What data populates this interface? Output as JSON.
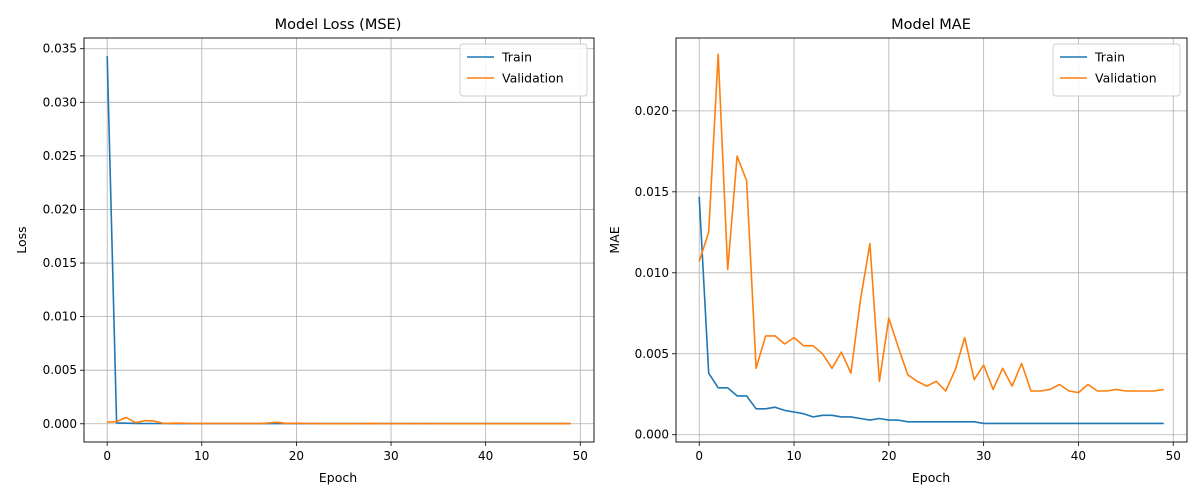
{
  "chart_data": [
    {
      "type": "line",
      "title": "Model Loss (MSE)",
      "xlabel": "Epoch",
      "ylabel": "Loss",
      "xlim": [
        -2.45,
        51.45
      ],
      "ylim": [
        -0.0017,
        0.036
      ],
      "xticks": [
        0,
        10,
        20,
        30,
        40,
        50
      ],
      "yticks": [
        0.0,
        0.005,
        0.01,
        0.015,
        0.02,
        0.025,
        0.03,
        0.035
      ],
      "ytick_labels": [
        "0.000",
        "0.005",
        "0.010",
        "0.015",
        "0.020",
        "0.025",
        "0.030",
        "0.035"
      ],
      "grid": true,
      "legend": "top-right",
      "x": [
        0,
        1,
        2,
        3,
        4,
        5,
        6,
        7,
        8,
        9,
        10,
        11,
        12,
        13,
        14,
        15,
        16,
        17,
        18,
        19,
        20,
        21,
        22,
        23,
        24,
        25,
        26,
        27,
        28,
        29,
        30,
        31,
        32,
        33,
        34,
        35,
        36,
        37,
        38,
        39,
        40,
        41,
        42,
        43,
        44,
        45,
        46,
        47,
        48,
        49
      ],
      "series": [
        {
          "name": "Train",
          "color": "#1f77b4",
          "values": [
            0.0343,
            8e-05,
            5e-05,
            4e-05,
            3e-05,
            3e-05,
            3e-05,
            2e-05,
            2e-05,
            2e-05,
            2e-05,
            2e-05,
            2e-05,
            2e-05,
            2e-05,
            2e-05,
            2e-05,
            2e-05,
            2e-05,
            2e-05,
            2e-05,
            2e-05,
            2e-05,
            2e-05,
            2e-05,
            2e-05,
            2e-05,
            2e-05,
            2e-05,
            2e-05,
            2e-05,
            2e-05,
            2e-05,
            2e-05,
            2e-05,
            2e-05,
            2e-05,
            2e-05,
            2e-05,
            2e-05,
            2e-05,
            2e-05,
            2e-05,
            2e-05,
            2e-05,
            2e-05,
            2e-05,
            2e-05,
            2e-05,
            2e-05
          ]
        },
        {
          "name": "Validation",
          "color": "#ff7f0e",
          "values": [
            0.00015,
            0.0002,
            0.0006,
            0.0001,
            0.0003,
            0.00025,
            3e-05,
            5e-05,
            5e-05,
            3e-05,
            4e-05,
            3e-05,
            3e-05,
            3e-05,
            2e-05,
            3e-05,
            2e-05,
            7e-05,
            0.00014,
            2e-05,
            5e-05,
            3e-05,
            2e-05,
            1e-05,
            1e-05,
            1e-05,
            1e-05,
            2e-05,
            4e-05,
            1e-05,
            2e-05,
            1e-05,
            2e-05,
            1e-05,
            2e-05,
            1e-05,
            1e-05,
            1e-05,
            1e-05,
            1e-05,
            1e-05,
            1e-05,
            1e-05,
            1e-05,
            1e-05,
            1e-05,
            1e-05,
            1e-05,
            1e-05,
            1e-05
          ]
        }
      ]
    },
    {
      "type": "line",
      "title": "Model MAE",
      "xlabel": "Epoch",
      "ylabel": "MAE",
      "xlim": [
        -2.45,
        51.45
      ],
      "ylim": [
        -0.00045,
        0.0245
      ],
      "xticks": [
        0,
        10,
        20,
        30,
        40,
        50
      ],
      "yticks": [
        0.0,
        0.005,
        0.01,
        0.015,
        0.02
      ],
      "ytick_labels": [
        "0.000",
        "0.005",
        "0.010",
        "0.015",
        "0.020"
      ],
      "grid": true,
      "legend": "top-right",
      "x": [
        0,
        1,
        2,
        3,
        4,
        5,
        6,
        7,
        8,
        9,
        10,
        11,
        12,
        13,
        14,
        15,
        16,
        17,
        18,
        19,
        20,
        21,
        22,
        23,
        24,
        25,
        26,
        27,
        28,
        29,
        30,
        31,
        32,
        33,
        34,
        35,
        36,
        37,
        38,
        39,
        40,
        41,
        42,
        43,
        44,
        45,
        46,
        47,
        48,
        49
      ],
      "series": [
        {
          "name": "Train",
          "color": "#1f77b4",
          "values": [
            0.0147,
            0.0038,
            0.0029,
            0.0029,
            0.0024,
            0.0024,
            0.0016,
            0.0016,
            0.0017,
            0.0015,
            0.0014,
            0.0013,
            0.0011,
            0.0012,
            0.0012,
            0.0011,
            0.0011,
            0.001,
            0.0009,
            0.001,
            0.0009,
            0.0009,
            0.0008,
            0.0008,
            0.0008,
            0.0008,
            0.0008,
            0.0008,
            0.0008,
            0.0008,
            0.0007,
            0.0007,
            0.0007,
            0.0007,
            0.0007,
            0.0007,
            0.0007,
            0.0007,
            0.0007,
            0.0007,
            0.0007,
            0.0007,
            0.0007,
            0.0007,
            0.0007,
            0.0007,
            0.0007,
            0.0007,
            0.0007,
            0.0007
          ]
        },
        {
          "name": "Validation",
          "color": "#ff7f0e",
          "values": [
            0.0107,
            0.0125,
            0.0235,
            0.0102,
            0.0172,
            0.0157,
            0.0041,
            0.0061,
            0.0061,
            0.0056,
            0.006,
            0.0055,
            0.0055,
            0.005,
            0.0041,
            0.0051,
            0.0038,
            0.0083,
            0.0118,
            0.0033,
            0.0072,
            0.0054,
            0.0037,
            0.0033,
            0.003,
            0.0033,
            0.0027,
            0.004,
            0.006,
            0.0034,
            0.0043,
            0.0028,
            0.0041,
            0.003,
            0.0044,
            0.0027,
            0.0027,
            0.0028,
            0.0031,
            0.0027,
            0.0026,
            0.0031,
            0.0027,
            0.0027,
            0.0028,
            0.0027,
            0.0027,
            0.0027,
            0.0027,
            0.0028
          ]
        }
      ]
    }
  ]
}
